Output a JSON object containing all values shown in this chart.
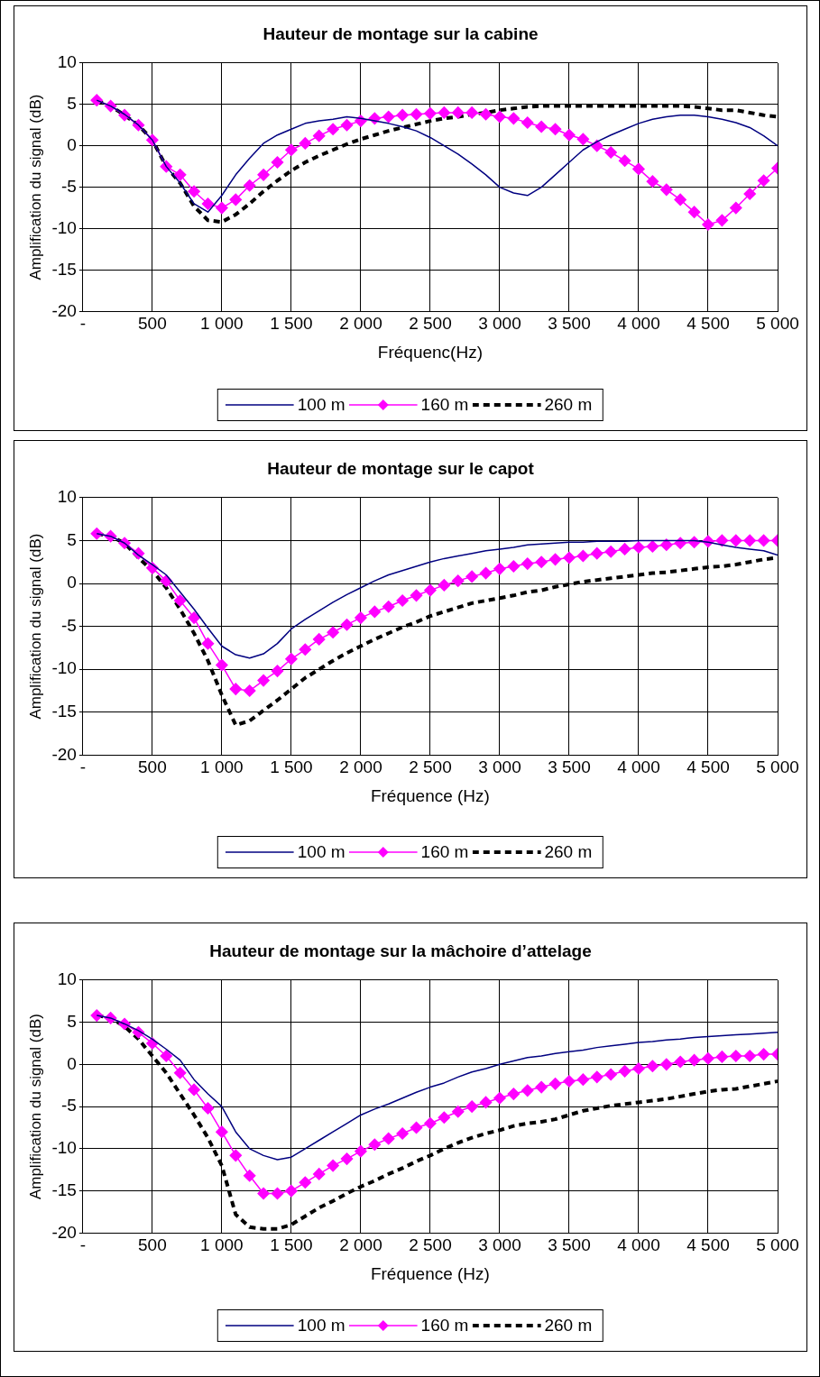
{
  "chart_data": [
    {
      "type": "line",
      "title": "Hauteur de montage sur la cabine",
      "xlabel": "Fréquenc(Hz)",
      "ylabel": "Amplification du signal (dB)",
      "legend": "bottom",
      "grid": true,
      "xlim": [
        0,
        5000
      ],
      "xticks": [
        {
          "value": 0,
          "label": "-"
        },
        {
          "value": 500,
          "label": "500"
        },
        {
          "value": 1000,
          "label": "1 000"
        },
        {
          "value": 1500,
          "label": "1 500"
        },
        {
          "value": 2000,
          "label": "2 000"
        },
        {
          "value": 2500,
          "label": "2 500"
        },
        {
          "value": 3000,
          "label": "3 000"
        },
        {
          "value": 3500,
          "label": "3 500"
        },
        {
          "value": 4000,
          "label": "4 000"
        },
        {
          "value": 4500,
          "label": "4 500"
        },
        {
          "value": 5000,
          "label": "5 000"
        }
      ],
      "ylim": [
        -20,
        10
      ],
      "yticks": [
        -20,
        -15,
        -10,
        -5,
        0,
        5,
        10
      ],
      "x": [
        100,
        200,
        300,
        400,
        500,
        600,
        700,
        800,
        900,
        1000,
        1100,
        1200,
        1300,
        1400,
        1500,
        1600,
        1700,
        1800,
        1900,
        2000,
        2100,
        2200,
        2300,
        2400,
        2500,
        2600,
        2700,
        2800,
        2900,
        3000,
        3100,
        3200,
        3300,
        3400,
        3500,
        3600,
        3700,
        3800,
        3900,
        4000,
        4100,
        4200,
        4300,
        4400,
        4500,
        4600,
        4700,
        4800,
        4900,
        5000
      ],
      "series": [
        {
          "name": "100 m",
          "color": "#000080",
          "marker": "none",
          "line_style": "solid",
          "values": [
            5.5,
            4.8,
            3.8,
            2.5,
            0.7,
            -2.5,
            -4.5,
            -7,
            -8,
            -6,
            -3.5,
            -1.5,
            0.3,
            1.3,
            2,
            2.7,
            3,
            3.2,
            3.5,
            3.3,
            3,
            2.7,
            2.3,
            1.8,
            1,
            0,
            -1,
            -2.2,
            -3.5,
            -5,
            -5.7,
            -6,
            -5,
            -3.5,
            -2,
            -0.5,
            0.5,
            1.3,
            2,
            2.7,
            3.2,
            3.5,
            3.7,
            3.7,
            3.5,
            3.2,
            2.8,
            2.2,
            1.2,
            0
          ]
        },
        {
          "name": "160 m",
          "color": "#ff00ff",
          "marker": "diamond",
          "line_style": "solid",
          "values": [
            5.5,
            4.8,
            3.7,
            2.5,
            0.7,
            -2.5,
            -3.5,
            -5.5,
            -7,
            -7.5,
            -6.5,
            -4.8,
            -3.5,
            -2,
            -0.5,
            0.3,
            1.2,
            2,
            2.5,
            3,
            3.3,
            3.5,
            3.7,
            3.8,
            3.9,
            4,
            4,
            4,
            3.8,
            3.5,
            3.3,
            2.8,
            2.3,
            2,
            1.3,
            0.8,
            0,
            -0.8,
            -1.8,
            -2.8,
            -4.3,
            -5.3,
            -6.5,
            -8,
            -9.5,
            -9,
            -7.5,
            -5.8,
            -4.2,
            -2.7
          ]
        },
        {
          "name": "260 m",
          "color": "#000000",
          "marker": "none",
          "line_style": "dashed",
          "values": [
            5.5,
            4.8,
            3.7,
            2.5,
            0.7,
            -2.5,
            -4.5,
            -7.3,
            -9,
            -9.2,
            -8.3,
            -7,
            -5.5,
            -4.2,
            -3,
            -2,
            -1.2,
            -0.5,
            0.2,
            0.8,
            1.3,
            1.8,
            2.2,
            2.6,
            3,
            3.3,
            3.5,
            3.8,
            4,
            4.3,
            4.5,
            4.7,
            4.8,
            4.8,
            4.8,
            4.8,
            4.8,
            4.8,
            4.8,
            4.8,
            4.8,
            4.8,
            4.8,
            4.7,
            4.5,
            4.3,
            4.3,
            4,
            3.7,
            3.5
          ]
        }
      ]
    },
    {
      "type": "line",
      "title": "Hauteur de montage sur le capot",
      "xlabel": "Fréquence (Hz)",
      "ylabel": "Amplification du signal (dB)",
      "legend": "bottom",
      "grid": true,
      "xlim": [
        0,
        5000
      ],
      "xticks": [
        {
          "value": 0,
          "label": "-"
        },
        {
          "value": 500,
          "label": "500"
        },
        {
          "value": 1000,
          "label": "1 000"
        },
        {
          "value": 1500,
          "label": "1 500"
        },
        {
          "value": 2000,
          "label": "2 000"
        },
        {
          "value": 2500,
          "label": "2 500"
        },
        {
          "value": 3000,
          "label": "3 000"
        },
        {
          "value": 3500,
          "label": "3 500"
        },
        {
          "value": 4000,
          "label": "4 000"
        },
        {
          "value": 4500,
          "label": "4 500"
        },
        {
          "value": 5000,
          "label": "5 000"
        }
      ],
      "ylim": [
        -20,
        10
      ],
      "yticks": [
        -20,
        -15,
        -10,
        -5,
        0,
        5,
        10
      ],
      "x": [
        100,
        200,
        300,
        400,
        500,
        600,
        700,
        800,
        900,
        1000,
        1100,
        1200,
        1300,
        1400,
        1500,
        1600,
        1700,
        1800,
        1900,
        2000,
        2100,
        2200,
        2300,
        2400,
        2500,
        2600,
        2700,
        2800,
        2900,
        3000,
        3100,
        3200,
        3300,
        3400,
        3500,
        3600,
        3700,
        3800,
        3900,
        4000,
        4100,
        4200,
        4300,
        4400,
        4500,
        4600,
        4700,
        4800,
        4900,
        5000
      ],
      "series": [
        {
          "name": "100 m",
          "color": "#000080",
          "marker": "none",
          "line_style": "solid",
          "values": [
            5.8,
            5.5,
            4.7,
            3.3,
            2.2,
            1,
            -1,
            -3,
            -5.2,
            -7.3,
            -8.3,
            -8.7,
            -8.2,
            -7,
            -5.3,
            -4.2,
            -3.2,
            -2.2,
            -1.3,
            -0.5,
            0.3,
            1,
            1.5,
            2,
            2.5,
            2.9,
            3.2,
            3.5,
            3.8,
            4,
            4.2,
            4.5,
            4.6,
            4.7,
            4.8,
            4.8,
            4.9,
            4.9,
            4.9,
            5,
            5,
            5,
            5,
            5,
            4.8,
            4.5,
            4.2,
            4,
            3.8,
            3.3
          ]
        },
        {
          "name": "160 m",
          "color": "#ff00ff",
          "marker": "diamond",
          "line_style": "solid",
          "values": [
            5.8,
            5.5,
            4.7,
            3.5,
            1.8,
            0.3,
            -2,
            -4,
            -7,
            -9.5,
            -12.3,
            -12.5,
            -11.3,
            -10.2,
            -8.8,
            -7.7,
            -6.5,
            -5.7,
            -4.8,
            -4,
            -3.3,
            -2.7,
            -2,
            -1.4,
            -0.8,
            -0.2,
            0.3,
            0.8,
            1.2,
            1.7,
            2,
            2.3,
            2.5,
            2.8,
            3,
            3.2,
            3.5,
            3.7,
            4,
            4.2,
            4.3,
            4.5,
            4.7,
            4.8,
            4.9,
            5,
            5,
            5,
            5,
            5
          ]
        },
        {
          "name": "260 m",
          "color": "#000000",
          "marker": "none",
          "line_style": "dashed",
          "values": [
            5.8,
            5.5,
            4.7,
            3,
            1.5,
            -0.5,
            -3,
            -5.8,
            -9,
            -13,
            -16.5,
            -16,
            -14.8,
            -13.6,
            -12.3,
            -11,
            -10,
            -9,
            -8.1,
            -7.3,
            -6.5,
            -5.8,
            -5.1,
            -4.5,
            -3.8,
            -3.3,
            -2.8,
            -2.3,
            -2,
            -1.7,
            -1.4,
            -1,
            -0.8,
            -0.4,
            -0.1,
            0.2,
            0.4,
            0.6,
            0.8,
            1,
            1.2,
            1.3,
            1.5,
            1.7,
            1.9,
            2,
            2.2,
            2.5,
            2.8,
            3
          ]
        }
      ]
    },
    {
      "type": "line",
      "title": "Hauteur de montage sur la mâchoire d’attelage",
      "xlabel": "Fréquence (Hz)",
      "ylabel": "Amplification du signal (dB)",
      "legend": "bottom",
      "grid": true,
      "xlim": [
        0,
        5000
      ],
      "xticks": [
        {
          "value": 0,
          "label": "-"
        },
        {
          "value": 500,
          "label": "500"
        },
        {
          "value": 1000,
          "label": "1 000"
        },
        {
          "value": 1500,
          "label": "1 500"
        },
        {
          "value": 2000,
          "label": "2 000"
        },
        {
          "value": 2500,
          "label": "2 500"
        },
        {
          "value": 3000,
          "label": "3 000"
        },
        {
          "value": 3500,
          "label": "3 500"
        },
        {
          "value": 4000,
          "label": "4 000"
        },
        {
          "value": 4500,
          "label": "4 500"
        },
        {
          "value": 5000,
          "label": "5 000"
        }
      ],
      "ylim": [
        -20,
        10
      ],
      "yticks": [
        -20,
        -15,
        -10,
        -5,
        0,
        5,
        10
      ],
      "x": [
        100,
        200,
        300,
        400,
        500,
        600,
        700,
        800,
        900,
        1000,
        1100,
        1200,
        1300,
        1400,
        1500,
        1600,
        1700,
        1800,
        1900,
        2000,
        2100,
        2200,
        2300,
        2400,
        2500,
        2600,
        2700,
        2800,
        2900,
        3000,
        3100,
        3200,
        3300,
        3400,
        3500,
        3600,
        3700,
        3800,
        3900,
        4000,
        4100,
        4200,
        4300,
        4400,
        4500,
        4600,
        4700,
        4800,
        4900,
        5000
      ],
      "series": [
        {
          "name": "100 m",
          "color": "#000080",
          "marker": "none",
          "line_style": "solid",
          "values": [
            5.8,
            5.5,
            4.8,
            4,
            3,
            1.8,
            0.5,
            -1.8,
            -3.5,
            -5,
            -8,
            -10,
            -10.8,
            -11.3,
            -11,
            -10,
            -9,
            -8,
            -7,
            -6,
            -5.3,
            -4.7,
            -4,
            -3.3,
            -2.7,
            -2.2,
            -1.5,
            -0.9,
            -0.5,
            0,
            0.4,
            0.8,
            1,
            1.3,
            1.5,
            1.7,
            2,
            2.2,
            2.4,
            2.6,
            2.7,
            2.9,
            3,
            3.2,
            3.3,
            3.4,
            3.5,
            3.6,
            3.7,
            3.8
          ]
        },
        {
          "name": "160 m",
          "color": "#ff00ff",
          "marker": "diamond",
          "line_style": "solid",
          "values": [
            5.8,
            5.5,
            4.8,
            3.8,
            2.5,
            1,
            -1,
            -3,
            -5.2,
            -8,
            -10.8,
            -13.2,
            -15.3,
            -15.3,
            -15,
            -14,
            -13,
            -12,
            -11.2,
            -10.3,
            -9.5,
            -8.8,
            -8.2,
            -7.5,
            -7,
            -6.3,
            -5.6,
            -5,
            -4.5,
            -4,
            -3.5,
            -3.1,
            -2.7,
            -2.3,
            -2,
            -1.8,
            -1.5,
            -1.2,
            -0.8,
            -0.5,
            -0.2,
            0,
            0.3,
            0.5,
            0.7,
            0.9,
            1,
            1,
            1.2,
            1.2
          ]
        },
        {
          "name": "260 m",
          "color": "#000000",
          "marker": "none",
          "line_style": "dashed",
          "values": [
            5.8,
            5.5,
            4.5,
            3,
            1,
            -1,
            -3.5,
            -6,
            -8.7,
            -12,
            -17.8,
            -19.3,
            -19.5,
            -19.5,
            -19,
            -18,
            -17,
            -16.2,
            -15.3,
            -14.5,
            -13.8,
            -13,
            -12.3,
            -11.5,
            -10.8,
            -10,
            -9.3,
            -8.7,
            -8.2,
            -7.8,
            -7.3,
            -7,
            -6.8,
            -6.5,
            -6,
            -5.5,
            -5.2,
            -4.9,
            -4.7,
            -4.5,
            -4.3,
            -4.1,
            -3.8,
            -3.5,
            -3.2,
            -3,
            -2.9,
            -2.6,
            -2.3,
            -2
          ]
        }
      ]
    }
  ]
}
